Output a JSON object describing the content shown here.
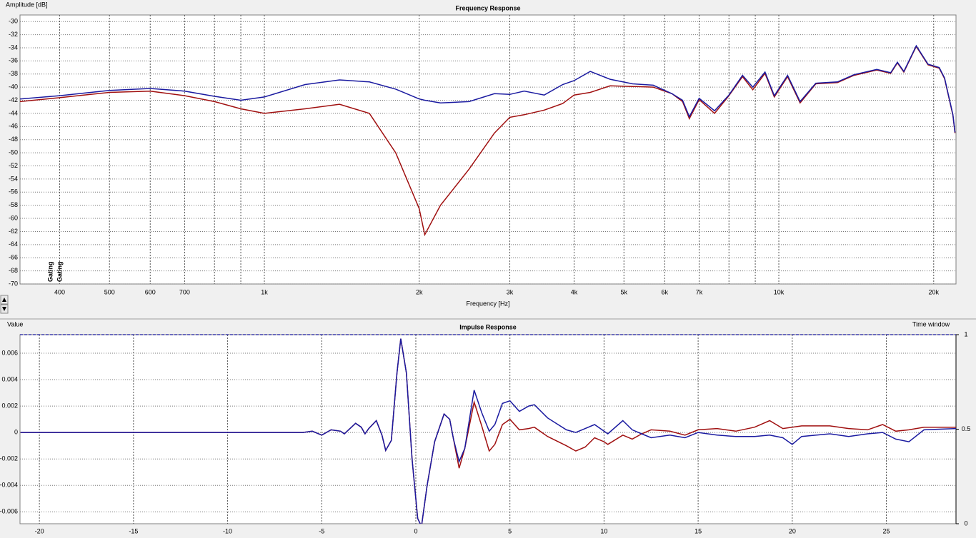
{
  "chart_data": [
    {
      "type": "line",
      "title": "Frequency Response",
      "y_label": "Amplitude [dB]",
      "x_label": "Frequency [Hz]",
      "log_x": true,
      "grid": true,
      "xlim": [
        335,
        22100
      ],
      "ylim": [
        -70,
        -29
      ],
      "xticks": [
        400,
        500,
        600,
        700,
        {
          "value": 1000,
          "label": "1k"
        },
        {
          "value": 2000,
          "label": "2k"
        },
        {
          "value": 3000,
          "label": "3k"
        },
        {
          "value": 4000,
          "label": "4k"
        },
        {
          "value": 5000,
          "label": "5k"
        },
        {
          "value": 6000,
          "label": "6k"
        },
        {
          "value": 7000,
          "label": "7k"
        },
        {
          "value": 10000,
          "label": "10k"
        },
        {
          "value": 20000,
          "label": "20k"
        }
      ],
      "x_minor_grid": [
        800,
        900,
        8000,
        9000
      ],
      "yticks": [
        -30,
        -32,
        -34,
        -36,
        -38,
        -40,
        -42,
        -44,
        -46,
        -48,
        -50,
        -52,
        -54,
        -56,
        -58,
        -60,
        -62,
        -64,
        -66,
        -68,
        -70
      ],
      "x": [
        335,
        400,
        500,
        600,
        700,
        800,
        900,
        1000,
        1200,
        1400,
        1600,
        1800,
        2000,
        2050,
        2200,
        2500,
        2800,
        3000,
        3200,
        3500,
        3800,
        4000,
        4300,
        4700,
        5200,
        5700,
        6200,
        6500,
        6700,
        7000,
        7500,
        8000,
        8500,
        8900,
        9400,
        9800,
        10400,
        11000,
        11800,
        13000,
        14000,
        15500,
        16500,
        17000,
        17500,
        18500,
        19500,
        20500,
        21000,
        21800,
        22000
      ],
      "series": [
        {
          "name": "Gating",
          "color": "#a01010",
          "values": [
            -42.2,
            -41.6,
            -40.8,
            -40.6,
            -41.3,
            -42.2,
            -43.3,
            -44.0,
            -43.3,
            -42.6,
            -44.0,
            -50.0,
            -58.5,
            -62.5,
            -58.0,
            -52.5,
            -47.0,
            -44.6,
            -44.2,
            -43.5,
            -42.5,
            -41.2,
            -40.8,
            -39.8,
            -39.9,
            -40.0,
            -41.0,
            -42.2,
            -44.8,
            -41.9,
            -44.0,
            -41.3,
            -38.4,
            -40.4,
            -37.9,
            -41.5,
            -38.4,
            -42.4,
            -39.5,
            -39.3,
            -38.2,
            -37.4,
            -37.9,
            -36.3,
            -37.7,
            -33.8,
            -36.6,
            -37.1,
            -38.7,
            -44.3,
            -47.0
          ]
        },
        {
          "name": "Gating",
          "color": "#1a1aa0",
          "values": [
            -41.8,
            -41.3,
            -40.5,
            -40.2,
            -40.6,
            -41.4,
            -42.0,
            -41.5,
            -39.6,
            -38.9,
            -39.2,
            -40.3,
            -41.8,
            -42.0,
            -42.4,
            -42.2,
            -41.0,
            -41.1,
            -40.6,
            -41.2,
            -39.6,
            -39.0,
            -37.6,
            -38.8,
            -39.5,
            -39.7,
            -41.0,
            -42.0,
            -44.5,
            -41.7,
            -43.6,
            -41.2,
            -38.2,
            -40.0,
            -37.7,
            -41.3,
            -38.2,
            -42.2,
            -39.4,
            -39.2,
            -38.1,
            -37.3,
            -37.8,
            -36.2,
            -37.6,
            -33.7,
            -36.5,
            -37.0,
            -38.6,
            -44.2,
            -46.9
          ]
        }
      ]
    },
    {
      "type": "line",
      "title": "Impulse Response",
      "y_label": "Value",
      "y2_label": "Time window",
      "log_x": false,
      "grid": true,
      "xlim": [
        -21.03,
        28.7
      ],
      "ylim": [
        -0.0069,
        0.0074
      ],
      "y2lim": [
        0,
        1
      ],
      "xticks": [
        -20,
        -15,
        -10,
        -5,
        0,
        5,
        10,
        15,
        20,
        25
      ],
      "yticks": [
        0.006,
        0.004,
        0.002,
        0,
        -0.002,
        -0.004,
        -0.006
      ],
      "y2ticks": [
        1,
        0.5,
        0
      ],
      "x": [
        -21,
        -10,
        -6,
        -5.5,
        -5,
        -4.5,
        -4,
        -3.8,
        -3.2,
        -2.9,
        -2.7,
        -2.5,
        -2.1,
        -1.8,
        -1.6,
        -1.3,
        -1.0,
        -0.8,
        -0.5,
        -0.2,
        0.1,
        0.3,
        0.6,
        1.0,
        1.5,
        1.8,
        2.0,
        2.3,
        2.6,
        3.1,
        3.5,
        3.9,
        4.2,
        4.6,
        5.0,
        5.5,
        6.0,
        6.3,
        7.0,
        8.0,
        8.5,
        9.0,
        9.5,
        10,
        10.2,
        11,
        11.5,
        12,
        12.5,
        13.5,
        14.3,
        15,
        16,
        17,
        18,
        18.8,
        19.5,
        20,
        20.5,
        22,
        23,
        24,
        24.8,
        25.5,
        26.2,
        27,
        28.7
      ],
      "series": [
        {
          "name": "Gating",
          "color": "#a01010",
          "values": [
            0,
            0,
            0,
            0.0001,
            -0.0002,
            0.0002,
            0.0001,
            -0.0001,
            0.0007,
            0.0004,
            -0.0001,
            0.0003,
            0.0009,
            -0.0002,
            -0.00135,
            -0.0006,
            0.0045,
            0.0071,
            0.0045,
            -0.002,
            -0.0065,
            -0.0071,
            -0.004,
            -0.0007,
            0.0014,
            0.001,
            -0.0005,
            -0.0027,
            -0.0012,
            0.0023,
            0.0005,
            -0.0014,
            -0.0009,
            0.0006,
            0.001,
            0.0002,
            0.0003,
            0.0004,
            -0.0003,
            -0.001,
            -0.0014,
            -0.0011,
            -0.0004,
            -0.0007,
            -0.0009,
            -0.0002,
            -0.0005,
            -0.0001,
            0.0002,
            0.0001,
            -0.0002,
            0.0002,
            0.0003,
            0.0001,
            0.0004,
            0.0009,
            0.0003,
            0.0004,
            0.0005,
            0.0005,
            0.0003,
            0.0002,
            0.0006,
            0.0001,
            0.0002,
            0.0004,
            0.0004
          ]
        },
        {
          "name": "Gating",
          "color": "#1a1aa0",
          "values": [
            0,
            0,
            0,
            0.0001,
            -0.0002,
            0.0002,
            0.0001,
            -0.0001,
            0.0007,
            0.0004,
            -0.0001,
            0.0003,
            0.0009,
            -0.0002,
            -0.00135,
            -0.0006,
            0.0045,
            0.0071,
            0.0045,
            -0.002,
            -0.0065,
            -0.0071,
            -0.004,
            -0.0007,
            0.0014,
            0.001,
            -0.0005,
            -0.0022,
            -0.0012,
            0.0032,
            0.0015,
            0.0001,
            0.0006,
            0.0022,
            0.0024,
            0.0016,
            0.002,
            0.0021,
            0.0011,
            0.0002,
            0,
            0.0003,
            0.0006,
            0.0001,
            -0.0001,
            0.0009,
            0.0002,
            -0.0001,
            -0.0004,
            -0.0002,
            -0.0004,
            0,
            -0.0002,
            -0.0003,
            -0.0003,
            -0.0002,
            -0.0004,
            -0.0009,
            -0.0003,
            -0.0001,
            -0.0003,
            -0.0001,
            0,
            -0.0005,
            -0.0007,
            0.0002,
            0.0003
          ]
        }
      ],
      "window": {
        "color": "#1a1aa0",
        "x": [
          -21.03,
          0,
          28.7
        ],
        "values": [
          1,
          1,
          1
        ]
      }
    }
  ]
}
